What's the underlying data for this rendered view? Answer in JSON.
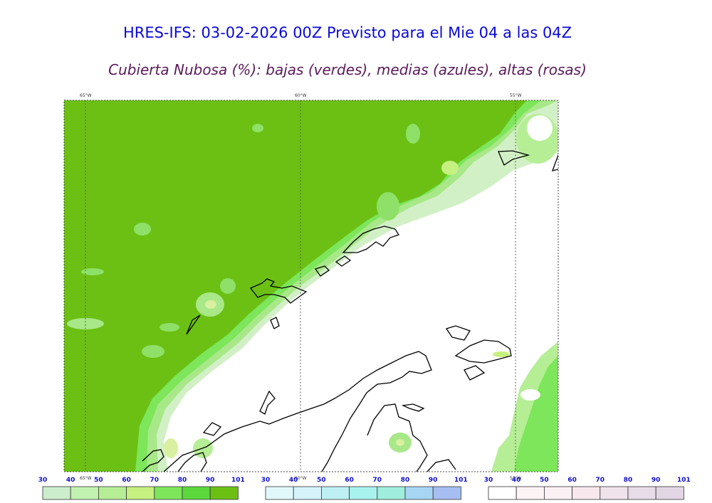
{
  "title": "HRES-IFS: 03-02-2026 00Z Previsto para el Mie 04 a las 04Z",
  "subtitle": "Cubierta Nubosa (%): bajas (verdes), medias (azules), altas (rosas)",
  "map": {
    "longitude_labels": [
      "65°W",
      "60°W",
      "55°W"
    ],
    "low_cloud_color": "#6cc014",
    "coastline_color": "#000000",
    "grid_style": "dotted"
  },
  "legends": [
    {
      "name": "bajas",
      "ticks": [
        "30",
        "40",
        "50",
        "60",
        "70",
        "80",
        "90",
        "101"
      ],
      "colors": [
        "#cdeecd",
        "#c2f2b0",
        "#b6ee96",
        "#c6f080",
        "#7de65a",
        "#5cd83c",
        "#6cc014"
      ]
    },
    {
      "name": "medias",
      "ticks": [
        "30",
        "40",
        "50",
        "60",
        "70",
        "80",
        "90",
        "101"
      ],
      "colors": [
        "#e0f8fa",
        "#d6f2fb",
        "#bdf0f4",
        "#a8f2ee",
        "#a0eedd",
        "#a6d6f4",
        "#a6bef2"
      ]
    },
    {
      "name": "altas",
      "ticks": [
        "30",
        "40",
        "50",
        "60",
        "70",
        "80",
        "90",
        "101"
      ],
      "colors": [
        "#ffffff",
        "#fdf4f6",
        "#fbf0f4",
        "#f8e8ee",
        "#f1e3ec",
        "#e8dce8",
        "#e2d6e4"
      ]
    }
  ]
}
